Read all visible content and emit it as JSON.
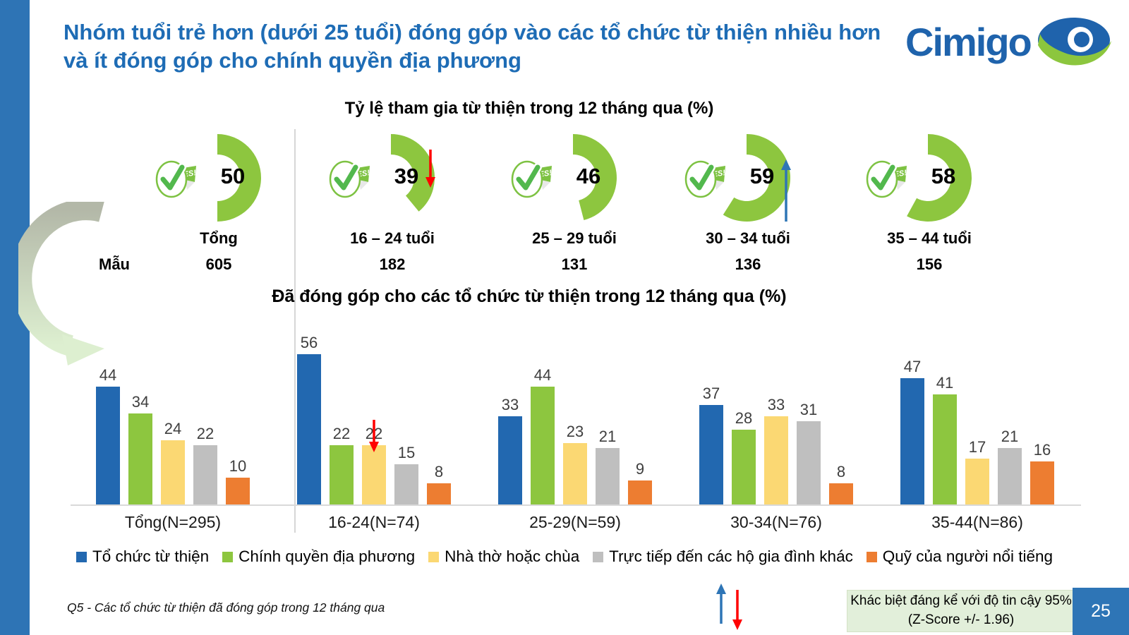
{
  "slide": {
    "title": "Nhóm tuổi trẻ hơn (dưới 25 tuổi) đóng góp vào các tổ chức từ thiện nhiều hơn và ít đóng góp cho chính quyền địa phương",
    "brand": "Cimigo",
    "page_number": "25",
    "footer_note": "Q5 - Các tổ chức từ thiện đã đóng góp trong 12 tháng qua",
    "significance_note_line1": "Khác biệt đáng kể với độ tin cậy 95%",
    "significance_note_line2": "(Z-Score +/- 1.96)",
    "yes_badge_text": "YES!"
  },
  "colors": {
    "accent_blue": "#2E74B5",
    "title_blue": "#1E6CB5",
    "donut_green": "#8DC63F",
    "bar_blue": "#2268B0",
    "bar_green": "#8DC63F",
    "bar_yellow": "#FBD873",
    "bar_gray": "#BFBFBF",
    "bar_orange": "#ED7D31",
    "sig_up": "#2E75B6",
    "sig_down": "#FF0000",
    "note_bg": "#E2EFDA"
  },
  "chart_data": [
    {
      "type": "pie",
      "subtype": "donut-gauge-row",
      "title": "Tỷ lệ tham gia từ thiện trong 12 tháng qua (%)",
      "sample_label": "Mẫu",
      "items": [
        {
          "label": "Tổng",
          "value": 50,
          "sample": 605,
          "arrow": null
        },
        {
          "label": "16 – 24 tuổi",
          "value": 39,
          "sample": 182,
          "arrow": "down"
        },
        {
          "label": "25 – 29 tuổi",
          "value": 46,
          "sample": 131,
          "arrow": null
        },
        {
          "label": "30 – 34 tuổi",
          "value": 59,
          "sample": 136,
          "arrow": "up"
        },
        {
          "label": "35 – 44 tuổi",
          "value": 58,
          "sample": 156,
          "arrow": null
        }
      ]
    },
    {
      "type": "bar",
      "title": "Đã đóng góp cho các tổ chức từ thiện trong 12 tháng qua (%)",
      "categories": [
        "Tổng(N=295)",
        "16-24(N=74)",
        "25-29(N=59)",
        "30-34(N=76)",
        "35-44(N=86)"
      ],
      "series": [
        {
          "name": "Tổ chức từ thiện",
          "color": "#2268B0",
          "values": [
            44,
            56,
            33,
            37,
            47
          ]
        },
        {
          "name": "Chính quyền địa phương",
          "color": "#8DC63F",
          "values": [
            34,
            22,
            44,
            28,
            41
          ]
        },
        {
          "name": "Nhà thờ hoặc chùa",
          "color": "#FBD873",
          "values": [
            24,
            22,
            23,
            33,
            17
          ]
        },
        {
          "name": "Trực tiếp đến các hộ gia đình khác",
          "color": "#BFBFBF",
          "values": [
            22,
            15,
            21,
            31,
            21
          ]
        },
        {
          "name": "Quỹ của người nổi tiếng",
          "color": "#ED7D31",
          "values": [
            10,
            8,
            9,
            8,
            16
          ]
        }
      ],
      "ylim": [
        0,
        60
      ],
      "grid": false,
      "legend_position": "bottom",
      "annotations": [
        {
          "category_index": 1,
          "series_index": 2,
          "type": "significant-decrease",
          "icon": "down-arrow"
        }
      ]
    }
  ]
}
